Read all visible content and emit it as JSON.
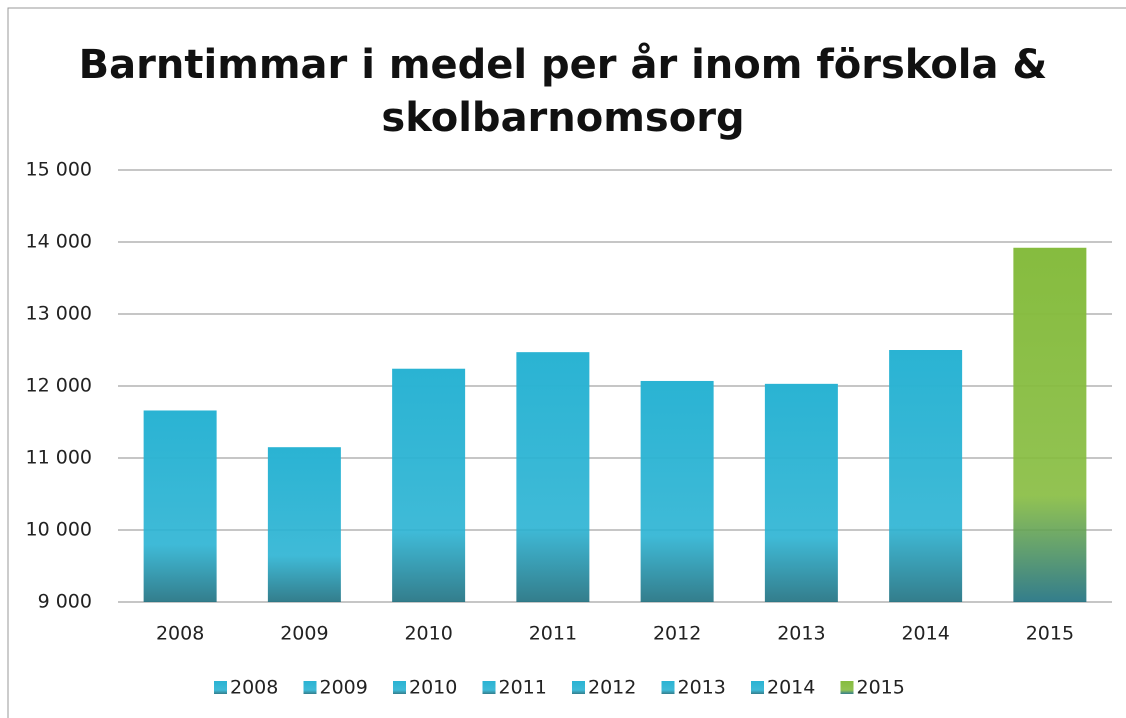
{
  "chart_data": {
    "type": "bar",
    "title": [
      "Barntimmar i medel per år inom förskola &",
      "skolbarnomsorg"
    ],
    "categories": [
      "2008",
      "2009",
      "2010",
      "2011",
      "2012",
      "2013",
      "2014",
      "2015"
    ],
    "values": [
      11660,
      11150,
      12240,
      12470,
      12070,
      12030,
      12500,
      13920
    ],
    "colors": [
      "#2ab3d3",
      "#2ab3d3",
      "#2ab3d3",
      "#2ab3d3",
      "#2ab3d3",
      "#2ab3d3",
      "#2ab3d3",
      "#86bc3f"
    ],
    "ylim": [
      9000,
      15000
    ],
    "yticks": [
      {
        "value": 9000,
        "label": "9 000"
      },
      {
        "value": 10000,
        "label": "10 000"
      },
      {
        "value": 11000,
        "label": "11 000"
      },
      {
        "value": 12000,
        "label": "12 000"
      },
      {
        "value": 13000,
        "label": "13 000"
      },
      {
        "value": 14000,
        "label": "14 000"
      },
      {
        "value": 15000,
        "label": "15 000"
      }
    ],
    "grid": true,
    "legend": "bottom"
  }
}
